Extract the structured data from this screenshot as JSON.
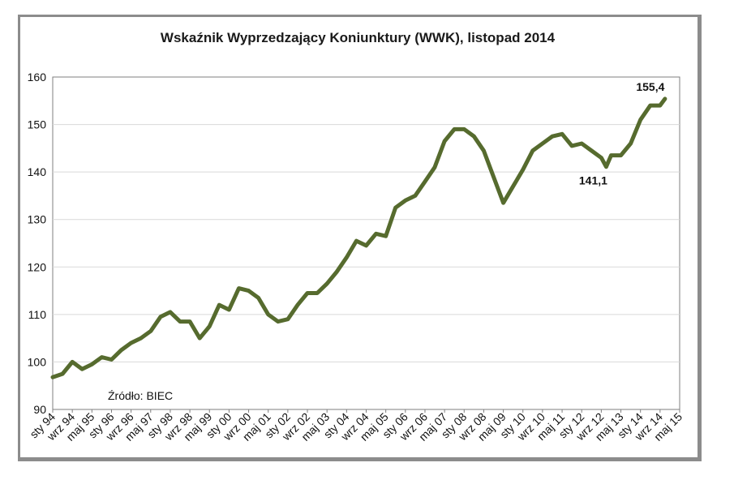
{
  "chart_data": {
    "type": "line",
    "title": "Wskaźnik Wyprzedzający Koniunktury (WWK), listopad 2014",
    "xlabel": "",
    "ylabel": "",
    "ylim": [
      90,
      160
    ],
    "yticks": [
      90,
      100,
      110,
      120,
      130,
      140,
      150,
      160
    ],
    "grid": true,
    "line_color": "#566b2e",
    "x_tick_labels": [
      "sty 94",
      "wrz 94",
      "maj 95",
      "sty 96",
      "wrz 96",
      "maj 97",
      "sty 98",
      "wrz 98",
      "maj 99",
      "sty 00",
      "wrz 00",
      "maj 01",
      "sty 02",
      "wrz 02",
      "maj 03",
      "sty 04",
      "wrz 04",
      "maj 05",
      "sty 06",
      "wrz 06",
      "maj 07",
      "sty 08",
      "wrz 08",
      "maj 09",
      "sty 10",
      "wrz 10",
      "maj 11",
      "sty 12",
      "wrz 12",
      "maj 13",
      "sty 14",
      "wrz 14",
      "maj 15"
    ],
    "annotations": [
      {
        "text": "155,4",
        "x": "2014-11",
        "y": 155.4
      },
      {
        "text": "141,1",
        "x": "2012-11",
        "y": 141.1
      }
    ],
    "source_note": "Źródło: BIEC",
    "series": [
      {
        "x": [
          "1994-01",
          "1994-05",
          "1994-09",
          "1995-01",
          "1995-05",
          "1995-09",
          "1996-01",
          "1996-05",
          "1996-09",
          "1997-01",
          "1997-05",
          "1997-09",
          "1998-01",
          "1998-05",
          "1998-09",
          "1999-01",
          "1999-05",
          "1999-09",
          "2000-01",
          "2000-05",
          "2000-09",
          "2001-01",
          "2001-05",
          "2001-09",
          "2002-01",
          "2002-05",
          "2002-09",
          "2003-01",
          "2003-05",
          "2003-09",
          "2004-01",
          "2004-05",
          "2004-09",
          "2005-01",
          "2005-05",
          "2005-09",
          "2006-01",
          "2006-05",
          "2006-09",
          "2007-01",
          "2007-05",
          "2007-09",
          "2008-01",
          "2008-05",
          "2008-09",
          "2009-01",
          "2009-05",
          "2009-09",
          "2010-01",
          "2010-05",
          "2010-09",
          "2011-01",
          "2011-05",
          "2011-09",
          "2012-01",
          "2012-05",
          "2012-09",
          "2012-11",
          "2013-01",
          "2013-05",
          "2013-09",
          "2014-01",
          "2014-05",
          "2014-09",
          "2014-11"
        ],
        "y": [
          96.8,
          97.5,
          100.0,
          98.5,
          99.5,
          101.0,
          100.5,
          102.5,
          104.0,
          105.0,
          106.5,
          109.5,
          110.5,
          108.5,
          108.5,
          105.0,
          107.5,
          112.0,
          111.0,
          115.5,
          115.0,
          113.5,
          110.0,
          108.5,
          109.0,
          112.0,
          114.5,
          114.5,
          116.5,
          119.0,
          122.0,
          125.5,
          124.5,
          127.0,
          126.5,
          132.5,
          134.0,
          135.0,
          138.0,
          141.0,
          146.5,
          149.0,
          149.0,
          147.5,
          144.5,
          139.0,
          133.5,
          137.0,
          140.5,
          144.5,
          146.0,
          147.5,
          148.0,
          145.5,
          146.0,
          144.5,
          143.0,
          141.1,
          143.5,
          143.5,
          146.0,
          151.0,
          154.0,
          154.0,
          155.4
        ]
      }
    ]
  }
}
